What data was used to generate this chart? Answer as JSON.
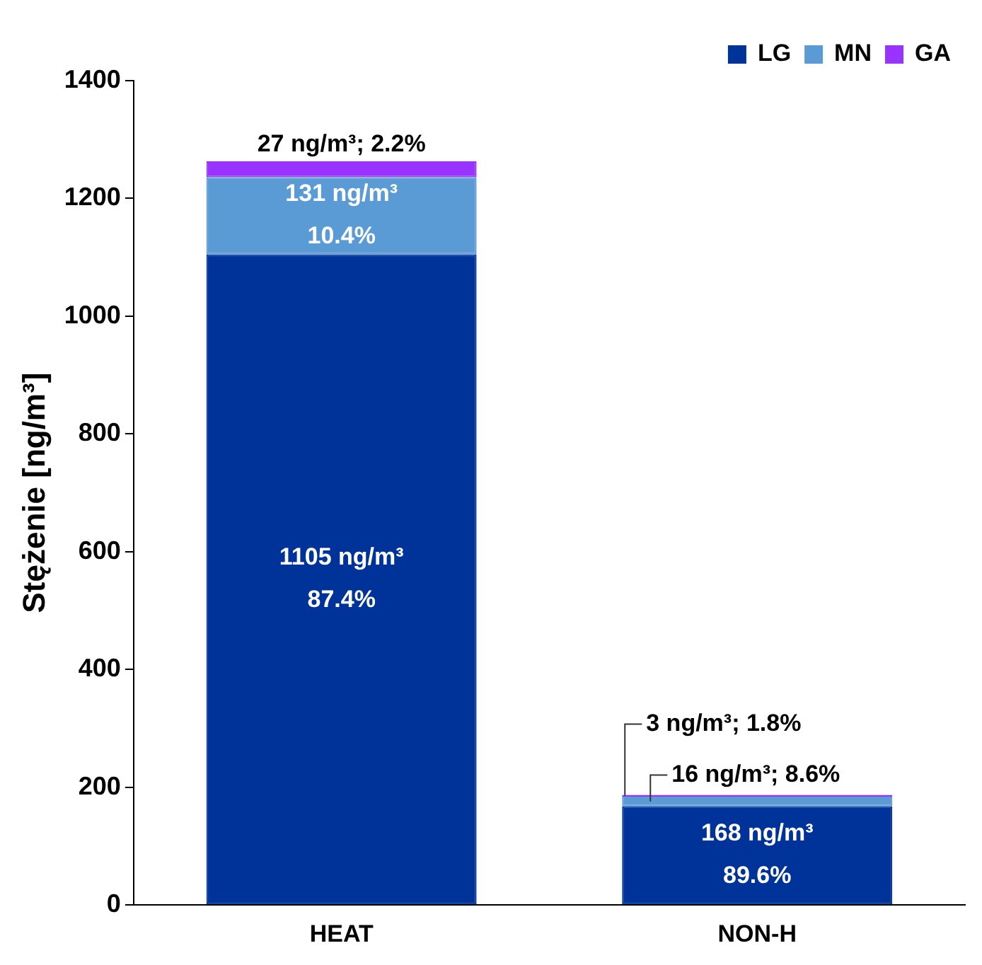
{
  "chart_data": {
    "type": "bar",
    "stacked": true,
    "ylabel": "Stężenie [ng/m³]",
    "categories": [
      "HEAT",
      "NON-H"
    ],
    "series": [
      {
        "name": "LG",
        "color": "#003399",
        "values": [
          1105,
          168
        ],
        "value_labels": [
          "1105 ng/m³\n87.4%",
          "168 ng/m³\n89.6%"
        ]
      },
      {
        "name": "MN",
        "color": "#5b9bd5",
        "values": [
          131,
          16
        ],
        "value_labels": [
          "131 ng/m³\n10.4%",
          "16 ng/m³; 8.6%"
        ]
      },
      {
        "name": "GA",
        "color": "#9933ff",
        "values": [
          27,
          3
        ],
        "value_labels": [
          "27 ng/m³; 2.2%",
          "3 ng/m³; 1.8%"
        ]
      }
    ],
    "ylim": [
      0,
      1400
    ],
    "yticks": [
      0,
      200,
      400,
      600,
      800,
      1000,
      1200,
      1400
    ],
    "grid": false,
    "legend": "top right"
  }
}
